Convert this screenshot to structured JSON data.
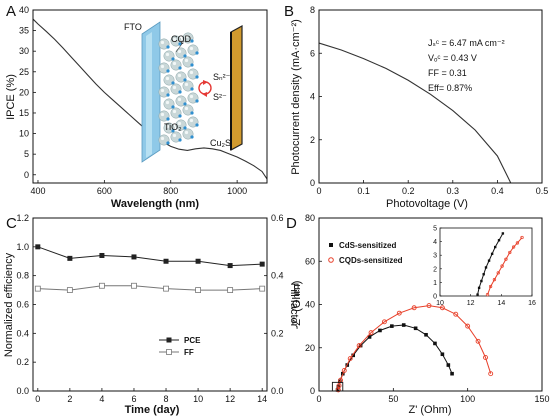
{
  "chart_data": [
    {
      "panel": "A",
      "type": "line",
      "xlabel": "Wavelength (nm)",
      "ylabel": "IPCE (%)",
      "xlim": [
        385,
        1090
      ],
      "ylim": [
        -2,
        40
      ],
      "xticks": [
        400,
        600,
        800,
        1000
      ],
      "yticks": [
        0,
        5,
        10,
        15,
        20,
        25,
        30,
        35,
        40
      ],
      "series": [
        {
          "color": "#333333",
          "x": [
            385,
            400,
            425,
            450,
            475,
            500,
            525,
            550,
            575,
            600,
            625,
            650,
            675,
            700,
            725,
            750,
            775,
            800,
            825,
            850,
            875,
            900,
            925,
            950,
            975,
            1000,
            1025,
            1050,
            1075,
            1090
          ],
          "y": [
            37.8,
            36.6,
            34.8,
            32.9,
            30.8,
            28.6,
            26.4,
            24.2,
            22.0,
            20.0,
            18.2,
            16.4,
            14.6,
            12.8,
            11.0,
            9.4,
            8.0,
            6.9,
            6.2,
            5.9,
            6.3,
            6.5,
            6.3,
            5.9,
            5.1,
            4.3,
            3.3,
            2.2,
            0.8,
            -1.0
          ]
        }
      ],
      "inset_labels": [
        "FTO",
        "CQD",
        "Sₙ²⁻",
        "S²⁻",
        "TiO₂",
        "Cu₂S"
      ]
    },
    {
      "panel": "B",
      "type": "line",
      "xlabel": "Photovoltage (V)",
      "ylabel": "Photocurrent density (mA·cm⁻²)",
      "xlim": [
        0,
        0.5
      ],
      "ylim": [
        0,
        8
      ],
      "xticks": [
        0,
        0.1,
        0.2,
        0.3,
        0.4,
        0.5
      ],
      "xtick_labels": [
        "0",
        "0.1",
        "0.2",
        "0.3",
        "0.4",
        "0.5"
      ],
      "yticks": [
        0,
        2,
        4,
        6,
        8
      ],
      "series": [
        {
          "color": "#333333",
          "x": [
            0,
            0.05,
            0.1,
            0.15,
            0.2,
            0.25,
            0.3,
            0.35,
            0.4,
            0.43
          ],
          "y": [
            6.47,
            6.15,
            5.75,
            5.3,
            4.75,
            4.1,
            3.35,
            2.45,
            1.25,
            0.0
          ]
        }
      ],
      "annotations": [
        "Jₛᶜ = 6.47 mA cm⁻²",
        "Vₒᶜ = 0.43 V",
        "FF = 0.31",
        "Eff= 0.87%"
      ]
    },
    {
      "panel": "C",
      "type": "line",
      "xlabel": "Time (day)",
      "ylabel": "Normalized efficiency",
      "ylabel_right": "Fill factor",
      "xlim": [
        -0.3,
        14.3
      ],
      "ylim": [
        0,
        1.2
      ],
      "ylim_right": [
        0,
        0.6
      ],
      "xticks": [
        0,
        2,
        4,
        6,
        8,
        10,
        12,
        14
      ],
      "yticks": [
        0.0,
        0.2,
        0.4,
        0.6,
        0.8,
        1.0,
        1.2
      ],
      "ytick_labels": [
        "0.0",
        "0.2",
        "0.4",
        "0.6",
        "0.8",
        "1.0",
        "1.2"
      ],
      "yticks_right": [
        0.0,
        0.2,
        0.4,
        0.6
      ],
      "ytick_labels_right": [
        "0.0",
        "0.2",
        "0.4",
        "0.6"
      ],
      "legend_position": "lower-right",
      "series": [
        {
          "name": "PCE",
          "axis": "left",
          "marker": "filled-square",
          "color": "#222222",
          "x": [
            0,
            2,
            4,
            6,
            8,
            10,
            12,
            14
          ],
          "y": [
            1.0,
            0.92,
            0.94,
            0.93,
            0.9,
            0.9,
            0.87,
            0.88
          ]
        },
        {
          "name": "FF",
          "axis": "right",
          "marker": "open-square",
          "color": "#777777",
          "x": [
            0,
            2,
            4,
            6,
            8,
            10,
            12,
            14
          ],
          "y": [
            0.355,
            0.35,
            0.365,
            0.365,
            0.355,
            0.35,
            0.35,
            0.355
          ]
        }
      ]
    },
    {
      "panel": "D",
      "type": "scatter",
      "xlabel": "Z' (Ohm)",
      "ylabel": "-Z'' (Ohm)",
      "xlim": [
        0,
        150
      ],
      "ylim": [
        0,
        80
      ],
      "xticks": [
        0,
        50,
        100,
        150
      ],
      "yticks": [
        0,
        20,
        40,
        60,
        80
      ],
      "legend_position": "top-left",
      "series": [
        {
          "name": "CdS-sensitized",
          "color": "#111111",
          "marker": "filled-square",
          "x": [
            12.5,
            13,
            14,
            16,
            19,
            23,
            28,
            34,
            41,
            49,
            57,
            65,
            72,
            78,
            83,
            87,
            89.5
          ],
          "y": [
            0.5,
            2,
            4.5,
            8,
            12,
            16.5,
            21,
            25,
            28,
            30,
            30.5,
            29,
            26,
            22,
            17,
            12,
            8
          ]
        },
        {
          "name": "CQDs-sensitized",
          "color": "#e8402a",
          "marker": "open-circle",
          "x": [
            13,
            13.5,
            14.5,
            17,
            21,
            27,
            35,
            44,
            54,
            64,
            74,
            83,
            92,
            100,
            107,
            112,
            115.5
          ],
          "y": [
            0.5,
            2.5,
            5,
            9.5,
            15,
            21,
            27,
            32,
            36,
            38.5,
            39.5,
            38.5,
            35.5,
            30,
            23,
            15.5,
            8
          ]
        }
      ],
      "inset": {
        "xlim": [
          10,
          16
        ],
        "ylim": [
          0,
          5
        ],
        "xticks": [
          10,
          12,
          14,
          16
        ],
        "yticks": [
          0,
          1,
          2,
          3,
          4,
          5
        ],
        "series": [
          {
            "name": "CdS-sensitized",
            "color": "#111111",
            "x": [
              12.45,
              12.55,
              12.7,
              12.85,
              13.0,
              13.2,
              13.4,
              13.6,
              13.85,
              14.1
            ],
            "y": [
              0.1,
              0.6,
              1.1,
              1.6,
              2.1,
              2.6,
              3.1,
              3.6,
              4.1,
              4.6
            ]
          },
          {
            "name": "CQDs-sensitized",
            "color": "#e8402a",
            "x": [
              13.1,
              13.3,
              13.55,
              13.8,
              14.05,
              14.3,
              14.55,
              14.8,
              15.05,
              15.35
            ],
            "y": [
              0.1,
              0.7,
              1.2,
              1.7,
              2.2,
              2.7,
              3.2,
              3.6,
              3.9,
              4.3
            ]
          }
        ]
      }
    }
  ]
}
